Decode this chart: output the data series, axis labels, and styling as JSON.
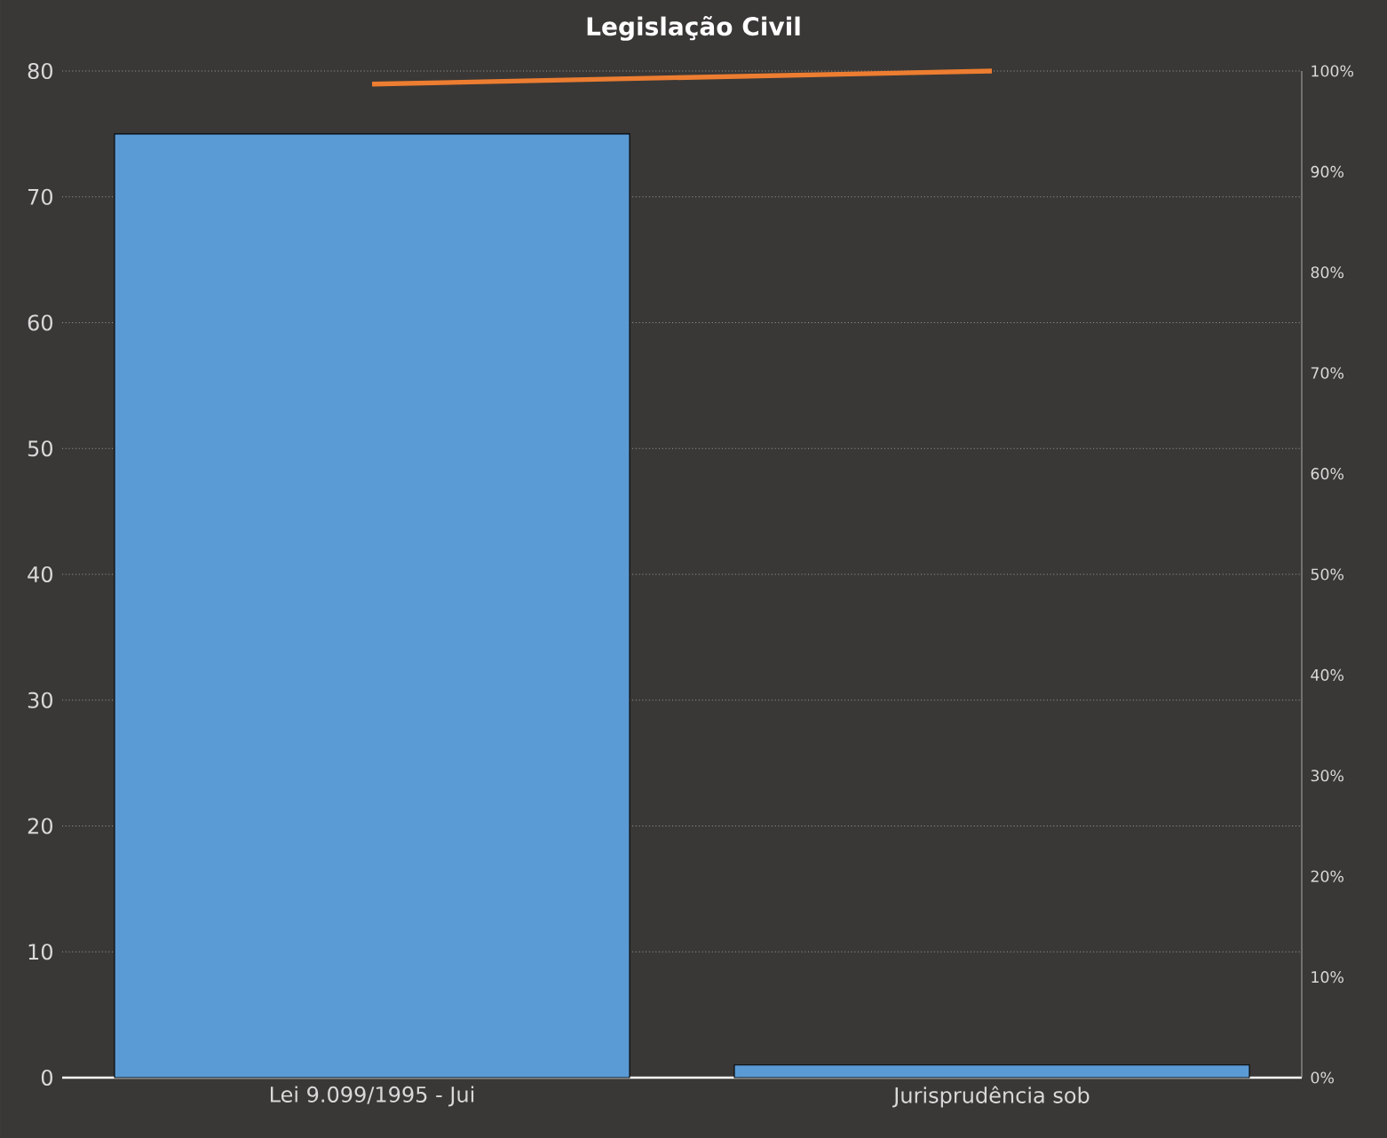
{
  "chart_data": {
    "type": "bar",
    "title": "Legislação Civil",
    "categories": [
      "Lei 9.099/1995 - Jui",
      "Jurisprudência sob"
    ],
    "series": [
      {
        "color": "#5b9bd5",
        "values": [
          75,
          1
        ]
      },
      {
        "type": "line",
        "axis": "y2",
        "color": "#ed7d31",
        "values": [
          98.7,
          100
        ]
      }
    ],
    "ylim": [
      0,
      80
    ],
    "yticks": [
      0,
      10,
      20,
      30,
      40,
      50,
      60,
      70,
      80
    ],
    "y2lim": [
      0,
      100
    ],
    "y2ticks": [
      {
        "value": 0,
        "label": "0%"
      },
      {
        "value": 10,
        "label": "10%"
      },
      {
        "value": 20,
        "label": "20%"
      },
      {
        "value": 30,
        "label": "30%"
      },
      {
        "value": 40,
        "label": "40%"
      },
      {
        "value": 50,
        "label": "50%"
      },
      {
        "value": 60,
        "label": "60%"
      },
      {
        "value": 70,
        "label": "70%"
      },
      {
        "value": 80,
        "label": "80%"
      },
      {
        "value": 90,
        "label": "90%"
      },
      {
        "value": 100,
        "label": "100%"
      }
    ],
    "grid": "y"
  }
}
